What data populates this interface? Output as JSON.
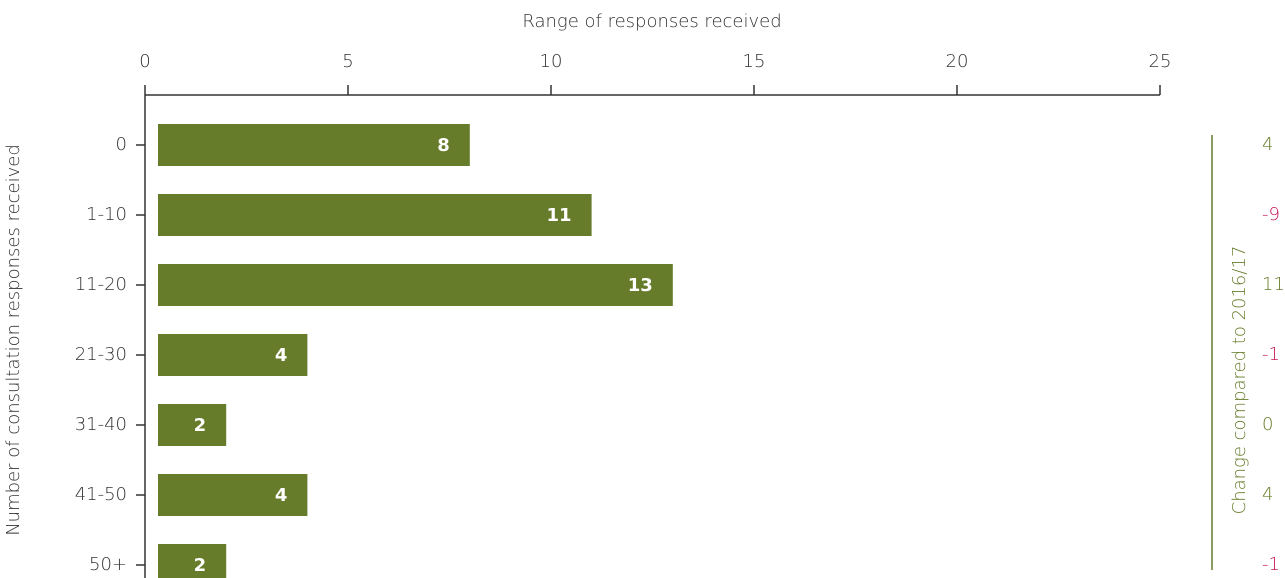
{
  "chart_data": {
    "type": "hbar",
    "title": "Range of responses received",
    "y_label": "Number of consultation responses received",
    "categories": [
      "0",
      "1-10",
      "11-20",
      "21-30",
      "31-40",
      "41-50",
      "50+"
    ],
    "values": [
      8,
      11,
      13,
      4,
      2,
      4,
      2
    ],
    "color": "#667c2b",
    "xlim": [
      0,
      25
    ],
    "xticks": [
      0,
      5,
      10,
      15,
      20,
      25
    ],
    "change": {
      "label": "Change compared to 2016/17",
      "values": [
        4,
        -9,
        11,
        -1,
        0,
        4,
        -1
      ],
      "color": "#667c2b",
      "negative_color": "#c8175b"
    }
  }
}
